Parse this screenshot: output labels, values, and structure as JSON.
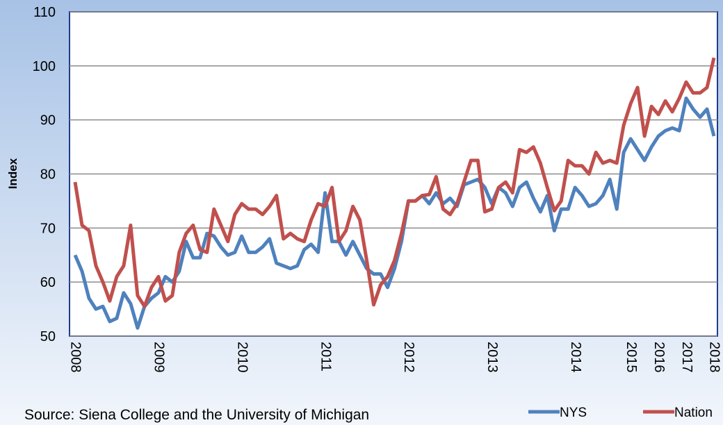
{
  "chart_data": {
    "type": "line",
    "y_label": "Index",
    "source": "Source: Siena College and the University of Michigan",
    "categories": [
      "2008",
      null,
      null,
      null,
      null,
      null,
      null,
      null,
      null,
      null,
      null,
      null,
      "2009",
      null,
      null,
      null,
      null,
      null,
      null,
      null,
      null,
      null,
      null,
      null,
      "2010",
      null,
      null,
      null,
      null,
      null,
      null,
      null,
      null,
      null,
      null,
      null,
      "2011",
      null,
      null,
      null,
      null,
      null,
      null,
      null,
      null,
      null,
      null,
      null,
      "2012",
      null,
      null,
      null,
      null,
      null,
      null,
      null,
      null,
      null,
      null,
      null,
      "2013",
      null,
      null,
      null,
      null,
      null,
      null,
      null,
      null,
      null,
      null,
      null,
      "2014",
      null,
      null,
      null,
      null,
      null,
      null,
      null,
      "2015",
      null,
      null,
      null,
      "2016",
      null,
      null,
      null,
      "2017",
      null,
      null,
      null,
      "2018"
    ],
    "series": [
      {
        "name": "NYS",
        "color": "#4f81bd",
        "values": [
          65,
          62,
          57,
          55,
          55.5,
          52.7,
          53.3,
          58,
          56,
          51.5,
          55.5,
          57,
          58,
          61,
          60,
          62,
          67.5,
          64.5,
          64.5,
          69,
          68.5,
          66.5,
          65,
          65.5,
          68.5,
          65.5,
          65.5,
          66.5,
          68,
          63.5,
          63,
          62.5,
          63,
          66,
          67,
          65.5,
          76.5,
          67.5,
          67.5,
          65,
          67.5,
          65,
          62.5,
          61.5,
          61.5,
          59,
          62.5,
          67.5,
          75,
          75,
          76,
          74.5,
          76.5,
          74.5,
          75.5,
          74,
          78,
          78.5,
          79,
          77.5,
          74.5,
          77.5,
          76.5,
          74,
          77.5,
          78.5,
          75.5,
          73,
          76,
          69.5,
          73.5,
          73.5,
          77.5,
          76,
          74,
          74.5,
          76,
          79,
          73.5,
          84,
          86.5,
          84.5,
          82.5,
          85,
          87,
          88,
          88.5,
          88,
          94,
          92,
          90.5,
          92,
          87
        ]
      },
      {
        "name": "Nation",
        "color": "#c0504d",
        "values": [
          78.5,
          70.5,
          69.5,
          63,
          60,
          56.5,
          61,
          63,
          70.5,
          57.5,
          55.5,
          59,
          61,
          56.5,
          57.5,
          65.5,
          69,
          70.5,
          66,
          65.5,
          73.5,
          70.5,
          67.5,
          72.5,
          74.5,
          73.5,
          73.5,
          72.5,
          74,
          76,
          68,
          69,
          68,
          67.5,
          71.5,
          74.5,
          74,
          77.5,
          67.5,
          69.5,
          74,
          71.5,
          64,
          55.8,
          59.5,
          61,
          64,
          69,
          75,
          75,
          76,
          76.2,
          79.5,
          73.5,
          72.5,
          74.5,
          78.5,
          82.5,
          82.5,
          73,
          73.5,
          77.5,
          78.5,
          76.5,
          84.5,
          84,
          85,
          82,
          77.5,
          73.2,
          75,
          82.5,
          81.5,
          81.5,
          80,
          84,
          82,
          82.5,
          82,
          89,
          93,
          96,
          87,
          92.5,
          91,
          93.5,
          91.5,
          94,
          97,
          95,
          95,
          96,
          101.5
        ]
      }
    ],
    "ylim": [
      50,
      110
    ],
    "yticks": [
      50,
      60,
      70,
      80,
      90,
      100,
      110
    ],
    "grid": true
  }
}
